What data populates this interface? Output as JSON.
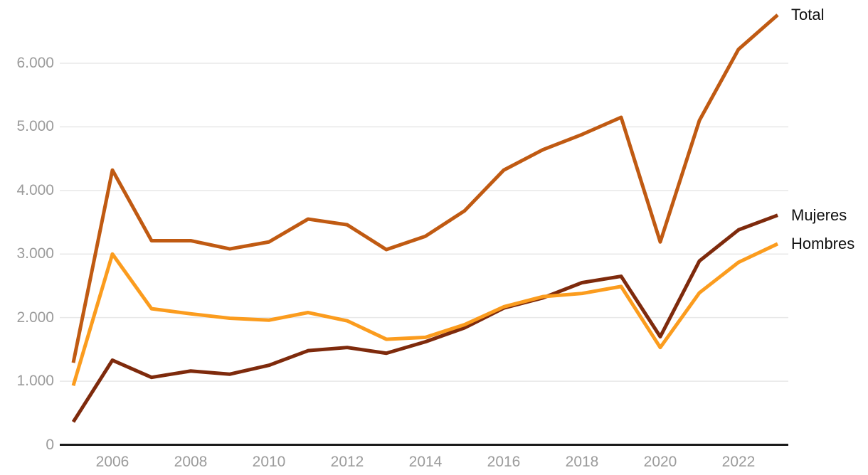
{
  "chart_data": {
    "type": "line",
    "x": [
      2005,
      2006,
      2007,
      2008,
      2009,
      2010,
      2011,
      2012,
      2013,
      2014,
      2015,
      2016,
      2017,
      2018,
      2019,
      2020,
      2021,
      2022,
      2023
    ],
    "series": [
      {
        "name": "Total",
        "color": "#c05a12",
        "values": [
          1290,
          4320,
          3210,
          3210,
          3080,
          3190,
          3550,
          3460,
          3070,
          3280,
          3680,
          4320,
          4640,
          4880,
          5150,
          3190,
          5100,
          6220,
          6760
        ]
      },
      {
        "name": "Mujeres",
        "color": "#7e2a0c",
        "values": [
          360,
          1330,
          1060,
          1160,
          1110,
          1250,
          1480,
          1530,
          1440,
          1620,
          1840,
          2150,
          2310,
          2550,
          2650,
          1700,
          2890,
          3380,
          3610
        ]
      },
      {
        "name": "Hombres",
        "color": "#fb9c1e",
        "values": [
          930,
          3000,
          2140,
          2060,
          1990,
          1960,
          2080,
          1950,
          1660,
          1690,
          1890,
          2170,
          2330,
          2380,
          2490,
          1530,
          2390,
          2870,
          3160
        ]
      }
    ],
    "y_ticks": [
      {
        "value": 0,
        "label": "0"
      },
      {
        "value": 1000,
        "label": "1.000"
      },
      {
        "value": 2000,
        "label": "2.000"
      },
      {
        "value": 3000,
        "label": "3.000"
      },
      {
        "value": 4000,
        "label": "4.000"
      },
      {
        "value": 5000,
        "label": "5.000"
      },
      {
        "value": 6000,
        "label": "6.000"
      }
    ],
    "x_ticks": [
      {
        "value": 2006,
        "label": "2006"
      },
      {
        "value": 2008,
        "label": "2008"
      },
      {
        "value": 2010,
        "label": "2010"
      },
      {
        "value": 2012,
        "label": "2012"
      },
      {
        "value": 2014,
        "label": "2014"
      },
      {
        "value": 2016,
        "label": "2016"
      },
      {
        "value": 2018,
        "label": "2018"
      },
      {
        "value": 2020,
        "label": "2020"
      },
      {
        "value": 2022,
        "label": "2022"
      }
    ],
    "title": "",
    "xlabel": "",
    "ylabel": "",
    "xlim": [
      2005,
      2023
    ],
    "ylim": [
      0,
      6760
    ],
    "grid": "horizontal",
    "legend_position": "right-of-line-ends",
    "colors": {
      "background": "#ffffff",
      "gridline": "#e8e8e8",
      "axis": "#1a1a1a",
      "tick_label": "#9b9b9b",
      "series_label": "#111111"
    }
  }
}
